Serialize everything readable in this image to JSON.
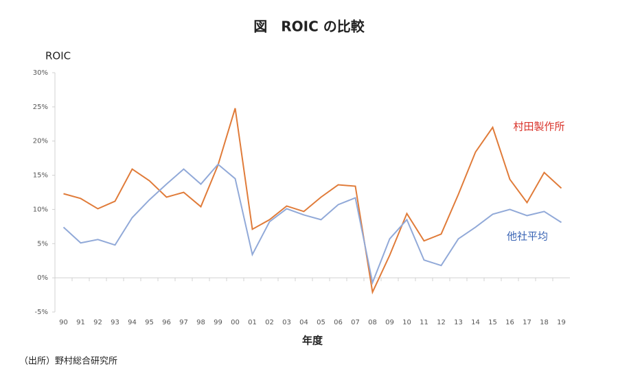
{
  "chart_data": {
    "type": "line",
    "title": "図　ROIC の比較",
    "y_label": "ROIC",
    "x_label": "年度",
    "source": "（出所）野村総合研究所",
    "categories": [
      "90",
      "91",
      "92",
      "93",
      "94",
      "95",
      "96",
      "97",
      "98",
      "99",
      "00",
      "01",
      "02",
      "03",
      "04",
      "05",
      "06",
      "07",
      "08",
      "09",
      "10",
      "11",
      "12",
      "13",
      "14",
      "15",
      "16",
      "17",
      "18",
      "19"
    ],
    "series": [
      {
        "name": "村田製作所",
        "color": "#e07b39",
        "label_color": "#d9342b",
        "values": [
          12.3,
          11.6,
          10.1,
          11.2,
          15.9,
          14.2,
          11.8,
          12.5,
          10.4,
          16.5,
          24.8,
          7.1,
          8.5,
          10.5,
          9.7,
          11.8,
          13.6,
          13.4,
          -2.1,
          3.3,
          9.4,
          5.4,
          6.4,
          12.2,
          18.4,
          22.0,
          14.4,
          11.0,
          15.4,
          13.1
        ]
      },
      {
        "name": "他社平均",
        "color": "#91a9d8",
        "label_color": "#3a64b4",
        "values": [
          7.4,
          5.1,
          5.6,
          4.8,
          8.8,
          11.4,
          13.7,
          15.9,
          13.7,
          16.6,
          14.5,
          3.4,
          8.2,
          10.1,
          9.2,
          8.5,
          10.7,
          11.7,
          -0.7,
          5.7,
          8.5,
          2.6,
          1.8,
          5.7,
          7.4,
          9.3,
          10.0,
          9.1,
          9.7,
          8.1
        ]
      }
    ],
    "ylim": [
      -5,
      30
    ],
    "yticks": [
      {
        "value": -5,
        "label": "-5%"
      },
      {
        "value": 0,
        "label": "0%"
      },
      {
        "value": 5,
        "label": "5%"
      },
      {
        "value": 10,
        "label": "10%"
      },
      {
        "value": 15,
        "label": "15%"
      },
      {
        "value": 20,
        "label": "20%"
      },
      {
        "value": 25,
        "label": "25%"
      },
      {
        "value": 30,
        "label": "30%"
      }
    ]
  }
}
